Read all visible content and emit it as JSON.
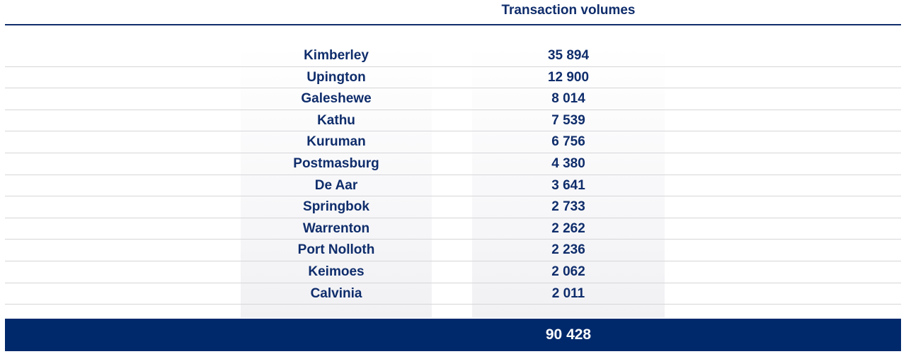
{
  "header": {
    "title": "Transaction volumes"
  },
  "rows": [
    {
      "town": "Kimberley",
      "value": "35 894"
    },
    {
      "town": "Upington",
      "value": "12 900"
    },
    {
      "town": "Galeshewe",
      "value": "8 014"
    },
    {
      "town": "Kathu",
      "value": "7 539"
    },
    {
      "town": "Kuruman",
      "value": "6 756"
    },
    {
      "town": "Postmasburg",
      "value": "4 380"
    },
    {
      "town": "De Aar",
      "value": "3 641"
    },
    {
      "town": "Springbok",
      "value": "2 733"
    },
    {
      "town": "Warrenton",
      "value": "2 262"
    },
    {
      "town": "Port Nolloth",
      "value": "2 236"
    },
    {
      "town": "Keimoes",
      "value": "2 062"
    },
    {
      "town": "Calvinia",
      "value": "2 011"
    }
  ],
  "total": {
    "value": "90 428"
  },
  "colors": {
    "navy": "#0f2d6b",
    "total_bar": "#00296b",
    "rule": "#d6d6d9"
  }
}
